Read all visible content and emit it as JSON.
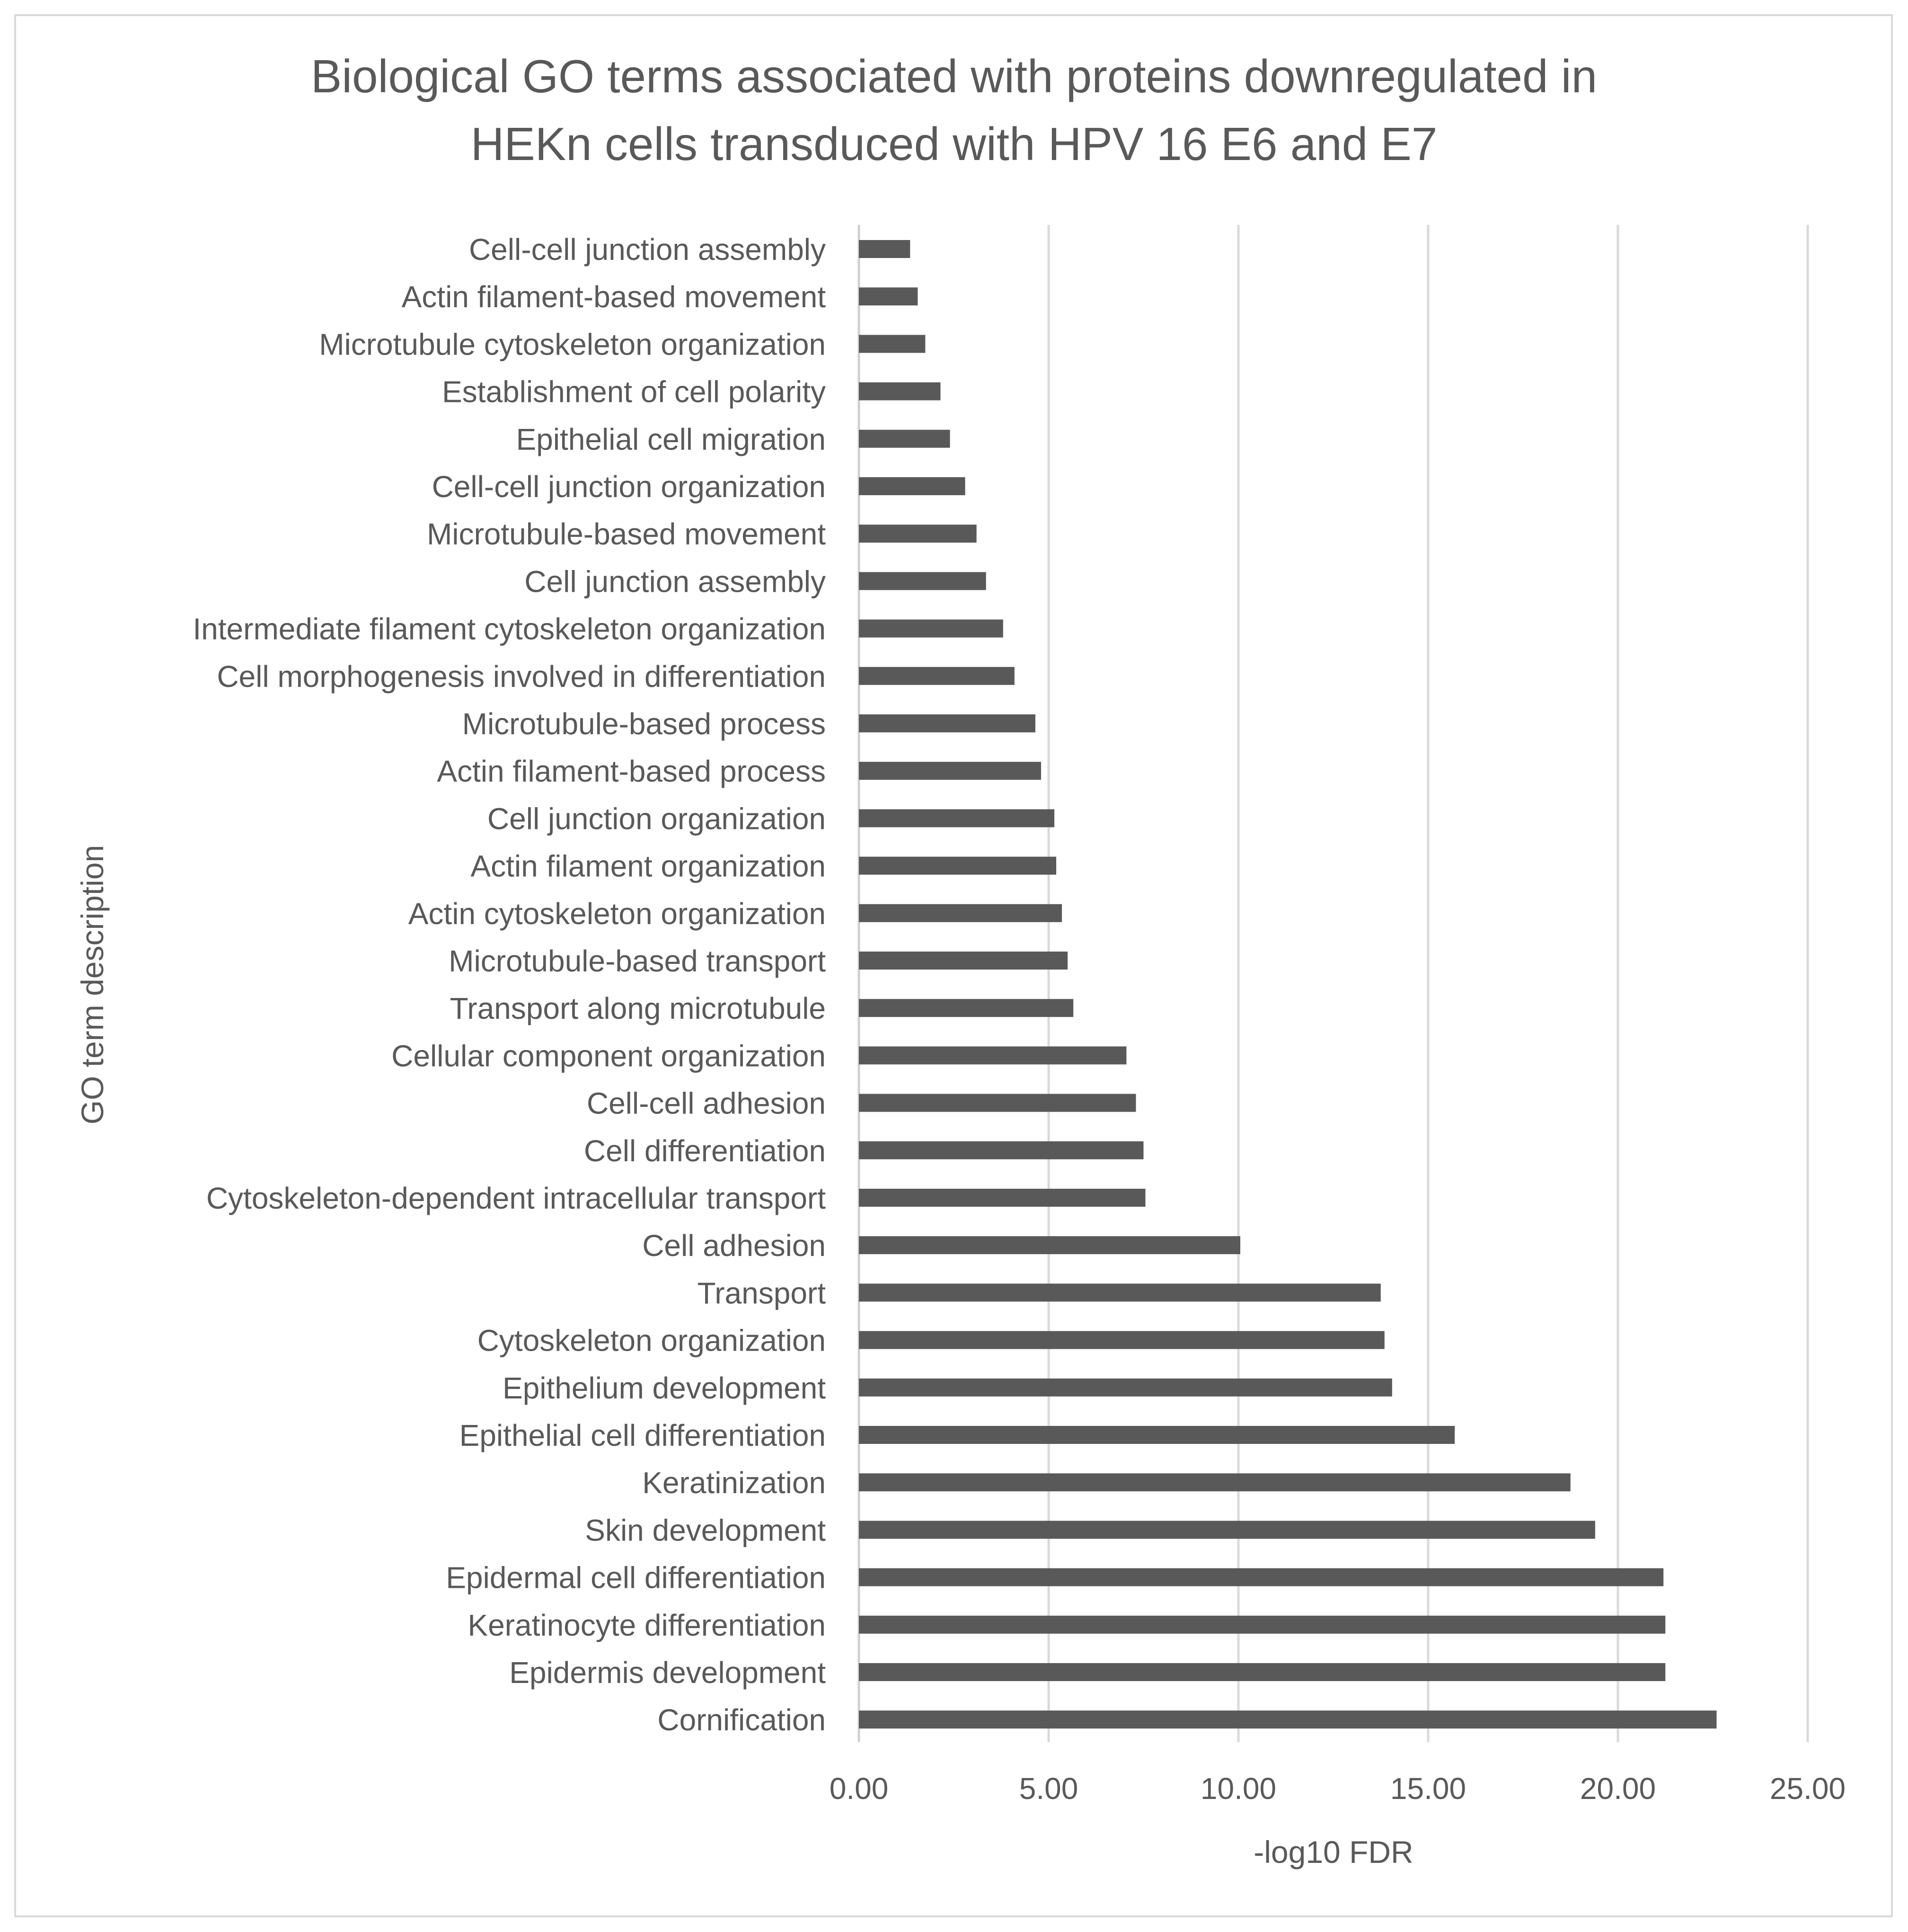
{
  "chart_data": {
    "type": "bar",
    "orientation": "horizontal",
    "title_lines": [
      "Biological GO terms associated with proteins downregulated in",
      "HEKn cells transduced with HPV 16 E6 and E7"
    ],
    "xlabel": "-log10 FDR",
    "ylabel": "GO term description",
    "xlim": [
      0,
      25
    ],
    "xticks": [
      "0.00",
      "5.00",
      "10.00",
      "15.00",
      "20.00",
      "25.00"
    ],
    "grid": "vertical",
    "legend": "none",
    "bar_color": "#595959",
    "categories": [
      "Cell-cell junction assembly",
      "Actin filament-based movement",
      "Microtubule cytoskeleton organization",
      "Establishment of cell polarity",
      "Epithelial cell migration",
      "Cell-cell junction organization",
      "Microtubule-based movement",
      "Cell junction assembly",
      "Intermediate filament cytoskeleton organization",
      "Cell morphogenesis involved in differentiation",
      "Microtubule-based process",
      "Actin filament-based process",
      "Cell junction organization",
      "Actin filament organization",
      "Actin cytoskeleton organization",
      "Microtubule-based transport",
      "Transport along microtubule",
      "Cellular component organization",
      "Cell-cell adhesion",
      "Cell differentiation",
      "Cytoskeleton-dependent intracellular transport",
      "Cell adhesion",
      "Transport",
      "Cytoskeleton organization",
      "Epithelium development",
      "Epithelial cell differentiation",
      "Keratinization",
      "Skin development",
      "Epidermal cell differentiation",
      "Keratinocyte differentiation",
      "Epidermis development",
      "Cornification"
    ],
    "values": [
      1.35,
      1.55,
      1.75,
      2.15,
      2.4,
      2.8,
      3.1,
      3.35,
      3.8,
      4.1,
      4.65,
      4.8,
      5.15,
      5.2,
      5.35,
      5.5,
      5.65,
      7.05,
      7.3,
      7.5,
      7.55,
      10.05,
      13.75,
      13.85,
      14.05,
      15.7,
      18.75,
      19.4,
      21.2,
      21.25,
      21.25,
      22.6
    ]
  }
}
